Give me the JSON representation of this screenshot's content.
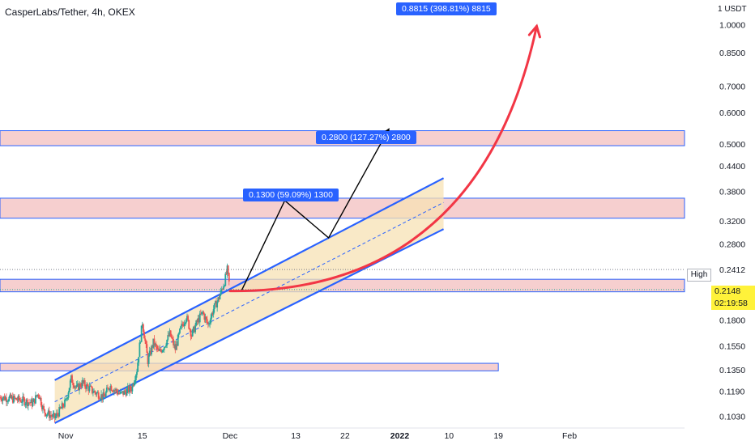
{
  "header": {
    "title": "CasperLabs/Tether, 4h, OKEX"
  },
  "axis": {
    "unit": "1 USDT",
    "high_label": "High",
    "high_value": "0.2412",
    "current_price": "0.2148",
    "countdown": "02:19:58"
  },
  "measures": [
    {
      "text": "0.8815 (398.81%) 8815"
    },
    {
      "text": "0.2800 (127.27%) 2800"
    },
    {
      "text": "0.1300 (59.09%) 1300"
    }
  ],
  "colors": {
    "up": "#26a69a",
    "down": "#ef5350",
    "channel": "#2962ff",
    "zone_fill": "#f4c7c7",
    "channel_fill": "#f7e2b4",
    "projection": "#f23645"
  },
  "chart_data": {
    "type": "candlestick",
    "title": "CasperLabs/Tether, 4h, OKEX",
    "y_scale": "log",
    "ylim": [
      0.098,
      1.1
    ],
    "y_ticks": [
      "1.0000",
      "0.8500",
      "0.7000",
      "0.6000",
      "0.5000",
      "0.4400",
      "0.3800",
      "0.3200",
      "0.2800",
      "0.1800",
      "0.1550",
      "0.1350",
      "0.1190",
      "0.1030"
    ],
    "x_ticks": [
      "Nov",
      "15",
      "Dec",
      "13",
      "22",
      "2022",
      "10",
      "19",
      "Feb"
    ],
    "x_tick_days": [
      0,
      14,
      30,
      42,
      51,
      61,
      70,
      79,
      92
    ],
    "xlim_days": [
      -12,
      113
    ],
    "price_path": [
      [
        -12,
        0.115
      ],
      [
        -8,
        0.113
      ],
      [
        -6,
        0.111
      ],
      [
        -5,
        0.118
      ],
      [
        -4,
        0.106
      ],
      [
        -2,
        0.102
      ],
      [
        0,
        0.112
      ],
      [
        1,
        0.128
      ],
      [
        2,
        0.121
      ],
      [
        3,
        0.125
      ],
      [
        5,
        0.119
      ],
      [
        7,
        0.115
      ],
      [
        8,
        0.123
      ],
      [
        10,
        0.117
      ],
      [
        12,
        0.121
      ],
      [
        13,
        0.135
      ],
      [
        14,
        0.178
      ],
      [
        15,
        0.142
      ],
      [
        16,
        0.158
      ],
      [
        17,
        0.149
      ],
      [
        18,
        0.155
      ],
      [
        19,
        0.166
      ],
      [
        20,
        0.152
      ],
      [
        21,
        0.171
      ],
      [
        22,
        0.184
      ],
      [
        23,
        0.165
      ],
      [
        24,
        0.178
      ],
      [
        25,
        0.188
      ],
      [
        26,
        0.175
      ],
      [
        27,
        0.192
      ],
      [
        28,
        0.205
      ],
      [
        29,
        0.225
      ],
      [
        29.5,
        0.241
      ],
      [
        30,
        0.2148
      ]
    ],
    "zones": [
      {
        "low": 0.495,
        "high": 0.54,
        "from_day": -12,
        "to_day": 113
      },
      {
        "low": 0.325,
        "high": 0.365,
        "from_day": -12,
        "to_day": 113
      },
      {
        "low": 0.212,
        "high": 0.228,
        "from_day": -12,
        "to_day": 113
      },
      {
        "low": 0.134,
        "high": 0.14,
        "from_day": -12,
        "to_day": 79
      }
    ],
    "channel": {
      "upper": [
        [
          -2,
          0.127
        ],
        [
          69,
          0.41
        ]
      ],
      "lower": [
        [
          -2,
          0.099
        ],
        [
          69,
          0.305
        ]
      ],
      "mid": [
        [
          -2,
          0.112
        ],
        [
          69,
          0.356
        ]
      ]
    },
    "projection_path": [
      [
        30,
        0.213
      ],
      [
        31,
        0.211
      ]
    ],
    "annotations": [
      {
        "type": "arrow",
        "points": [
          [
            32,
            0.212
          ],
          [
            40,
            0.36
          ],
          [
            48,
            0.29
          ],
          [
            59,
            0.545
          ]
        ]
      },
      {
        "type": "curve_arrow",
        "from": [
          30,
          0.213
        ],
        "to": [
          86,
          0.99
        ]
      }
    ]
  }
}
